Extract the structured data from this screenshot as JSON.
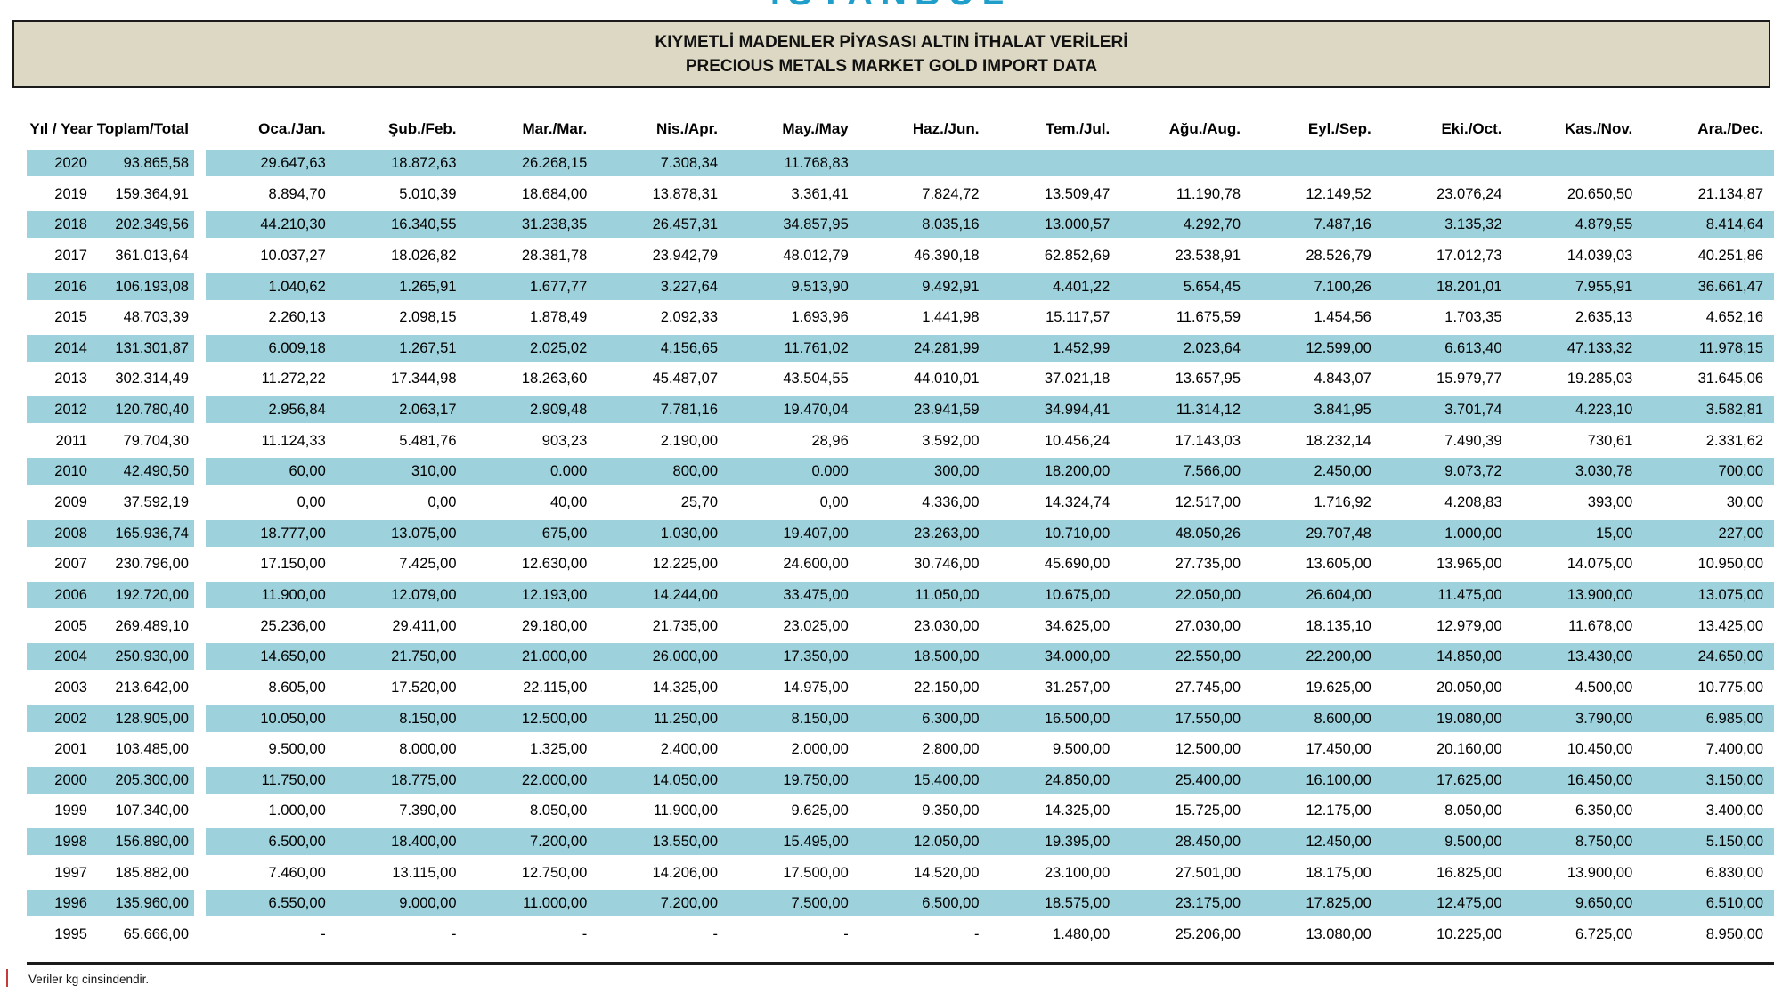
{
  "logo": {
    "text": "ISTANBUL"
  },
  "title": {
    "line1": "KIYMETLİ MADENLER PİYASASI ALTIN İTHALAT VERİLERİ",
    "line2": "PRECIOUS METALS MARKET GOLD IMPORT DATA"
  },
  "colors": {
    "band_blue": "#9dd2dc",
    "title_beige": "#ddd8c3",
    "border_dark": "#1b1b1b",
    "logo_blue": "#1f9ec9"
  },
  "table": {
    "columns": [
      "Yıl / Year",
      "Toplam/Total",
      "Oca./Jan.",
      "Şub./Feb.",
      "Mar./Mar.",
      "Nis./Apr.",
      "May./May",
      "Haz./Jun.",
      "Tem./Jul.",
      "Ağu./Aug.",
      "Eyl./Sep.",
      "Eki./Oct.",
      "Kas./Nov.",
      "Ara./Dec."
    ],
    "rows": [
      {
        "year": "2020",
        "total": "93.865,58",
        "months": [
          "29.647,63",
          "18.872,63",
          "26.268,15",
          "7.308,34",
          "11.768,83",
          "",
          "",
          "",
          "",
          "",
          "",
          ""
        ]
      },
      {
        "year": "2019",
        "total": "159.364,91",
        "months": [
          "8.894,70",
          "5.010,39",
          "18.684,00",
          "13.878,31",
          "3.361,41",
          "7.824,72",
          "13.509,47",
          "11.190,78",
          "12.149,52",
          "23.076,24",
          "20.650,50",
          "21.134,87"
        ]
      },
      {
        "year": "2018",
        "total": "202.349,56",
        "months": [
          "44.210,30",
          "16.340,55",
          "31.238,35",
          "26.457,31",
          "34.857,95",
          "8.035,16",
          "13.000,57",
          "4.292,70",
          "7.487,16",
          "3.135,32",
          "4.879,55",
          "8.414,64"
        ]
      },
      {
        "year": "2017",
        "total": "361.013,64",
        "months": [
          "10.037,27",
          "18.026,82",
          "28.381,78",
          "23.942,79",
          "48.012,79",
          "46.390,18",
          "62.852,69",
          "23.538,91",
          "28.526,79",
          "17.012,73",
          "14.039,03",
          "40.251,86"
        ]
      },
      {
        "year": "2016",
        "total": "106.193,08",
        "months": [
          "1.040,62",
          "1.265,91",
          "1.677,77",
          "3.227,64",
          "9.513,90",
          "9.492,91",
          "4.401,22",
          "5.654,45",
          "7.100,26",
          "18.201,01",
          "7.955,91",
          "36.661,47"
        ]
      },
      {
        "year": "2015",
        "total": "48.703,39",
        "months": [
          "2.260,13",
          "2.098,15",
          "1.878,49",
          "2.092,33",
          "1.693,96",
          "1.441,98",
          "15.117,57",
          "11.675,59",
          "1.454,56",
          "1.703,35",
          "2.635,13",
          "4.652,16"
        ]
      },
      {
        "year": "2014",
        "total": "131.301,87",
        "months": [
          "6.009,18",
          "1.267,51",
          "2.025,02",
          "4.156,65",
          "11.761,02",
          "24.281,99",
          "1.452,99",
          "2.023,64",
          "12.599,00",
          "6.613,40",
          "47.133,32",
          "11.978,15"
        ]
      },
      {
        "year": "2013",
        "total": "302.314,49",
        "months": [
          "11.272,22",
          "17.344,98",
          "18.263,60",
          "45.487,07",
          "43.504,55",
          "44.010,01",
          "37.021,18",
          "13.657,95",
          "4.843,07",
          "15.979,77",
          "19.285,03",
          "31.645,06"
        ]
      },
      {
        "year": "2012",
        "total": "120.780,40",
        "months": [
          "2.956,84",
          "2.063,17",
          "2.909,48",
          "7.781,16",
          "19.470,04",
          "23.941,59",
          "34.994,41",
          "11.314,12",
          "3.841,95",
          "3.701,74",
          "4.223,10",
          "3.582,81"
        ]
      },
      {
        "year": "2011",
        "total": "79.704,30",
        "months": [
          "11.124,33",
          "5.481,76",
          "903,23",
          "2.190,00",
          "28,96",
          "3.592,00",
          "10.456,24",
          "17.143,03",
          "18.232,14",
          "7.490,39",
          "730,61",
          "2.331,62"
        ]
      },
      {
        "year": "2010",
        "total": "42.490,50",
        "months": [
          "60,00",
          "310,00",
          "0.000",
          "800,00",
          "0.000",
          "300,00",
          "18.200,00",
          "7.566,00",
          "2.450,00",
          "9.073,72",
          "3.030,78",
          "700,00"
        ]
      },
      {
        "year": "2009",
        "total": "37.592,19",
        "months": [
          "0,00",
          "0,00",
          "40,00",
          "25,70",
          "0,00",
          "4.336,00",
          "14.324,74",
          "12.517,00",
          "1.716,92",
          "4.208,83",
          "393,00",
          "30,00"
        ]
      },
      {
        "year": "2008",
        "total": "165.936,74",
        "months": [
          "18.777,00",
          "13.075,00",
          "675,00",
          "1.030,00",
          "19.407,00",
          "23.263,00",
          "10.710,00",
          "48.050,26",
          "29.707,48",
          "1.000,00",
          "15,00",
          "227,00"
        ]
      },
      {
        "year": "2007",
        "total": "230.796,00",
        "months": [
          "17.150,00",
          "7.425,00",
          "12.630,00",
          "12.225,00",
          "24.600,00",
          "30.746,00",
          "45.690,00",
          "27.735,00",
          "13.605,00",
          "13.965,00",
          "14.075,00",
          "10.950,00"
        ]
      },
      {
        "year": "2006",
        "total": "192.720,00",
        "months": [
          "11.900,00",
          "12.079,00",
          "12.193,00",
          "14.244,00",
          "33.475,00",
          "11.050,00",
          "10.675,00",
          "22.050,00",
          "26.604,00",
          "11.475,00",
          "13.900,00",
          "13.075,00"
        ]
      },
      {
        "year": "2005",
        "total": "269.489,10",
        "months": [
          "25.236,00",
          "29.411,00",
          "29.180,00",
          "21.735,00",
          "23.025,00",
          "23.030,00",
          "34.625,00",
          "27.030,00",
          "18.135,10",
          "12.979,00",
          "11.678,00",
          "13.425,00"
        ]
      },
      {
        "year": "2004",
        "total": "250.930,00",
        "months": [
          "14.650,00",
          "21.750,00",
          "21.000,00",
          "26.000,00",
          "17.350,00",
          "18.500,00",
          "34.000,00",
          "22.550,00",
          "22.200,00",
          "14.850,00",
          "13.430,00",
          "24.650,00"
        ]
      },
      {
        "year": "2003",
        "total": "213.642,00",
        "months": [
          "8.605,00",
          "17.520,00",
          "22.115,00",
          "14.325,00",
          "14.975,00",
          "22.150,00",
          "31.257,00",
          "27.745,00",
          "19.625,00",
          "20.050,00",
          "4.500,00",
          "10.775,00"
        ]
      },
      {
        "year": "2002",
        "total": "128.905,00",
        "months": [
          "10.050,00",
          "8.150,00",
          "12.500,00",
          "11.250,00",
          "8.150,00",
          "6.300,00",
          "16.500,00",
          "17.550,00",
          "8.600,00",
          "19.080,00",
          "3.790,00",
          "6.985,00"
        ]
      },
      {
        "year": "2001",
        "total": "103.485,00",
        "months": [
          "9.500,00",
          "8.000,00",
          "1.325,00",
          "2.400,00",
          "2.000,00",
          "2.800,00",
          "9.500,00",
          "12.500,00",
          "17.450,00",
          "20.160,00",
          "10.450,00",
          "7.400,00"
        ]
      },
      {
        "year": "2000",
        "total": "205.300,00",
        "months": [
          "11.750,00",
          "18.775,00",
          "22.000,00",
          "14.050,00",
          "19.750,00",
          "15.400,00",
          "24.850,00",
          "25.400,00",
          "16.100,00",
          "17.625,00",
          "16.450,00",
          "3.150,00"
        ]
      },
      {
        "year": "1999",
        "total": "107.340,00",
        "months": [
          "1.000,00",
          "7.390,00",
          "8.050,00",
          "11.900,00",
          "9.625,00",
          "9.350,00",
          "14.325,00",
          "15.725,00",
          "12.175,00",
          "8.050,00",
          "6.350,00",
          "3.400,00"
        ]
      },
      {
        "year": "1998",
        "total": "156.890,00",
        "months": [
          "6.500,00",
          "18.400,00",
          "7.200,00",
          "13.550,00",
          "15.495,00",
          "12.050,00",
          "19.395,00",
          "28.450,00",
          "12.450,00",
          "9.500,00",
          "8.750,00",
          "5.150,00"
        ]
      },
      {
        "year": "1997",
        "total": "185.882,00",
        "months": [
          "7.460,00",
          "13.115,00",
          "12.750,00",
          "14.206,00",
          "17.500,00",
          "14.520,00",
          "23.100,00",
          "27.501,00",
          "18.175,00",
          "16.825,00",
          "13.900,00",
          "6.830,00"
        ]
      },
      {
        "year": "1996",
        "total": "135.960,00",
        "months": [
          "6.550,00",
          "9.000,00",
          "11.000,00",
          "7.200,00",
          "7.500,00",
          "6.500,00",
          "18.575,00",
          "23.175,00",
          "17.825,00",
          "12.475,00",
          "9.650,00",
          "6.510,00"
        ]
      },
      {
        "year": "1995",
        "total": "65.666,00",
        "months": [
          "-",
          "-",
          "-",
          "-",
          "-",
          "-",
          "1.480,00",
          "25.206,00",
          "13.080,00",
          "10.225,00",
          "6.725,00",
          "8.950,00"
        ]
      }
    ]
  },
  "footer": {
    "note": "Veriler kg cinsindendir."
  }
}
